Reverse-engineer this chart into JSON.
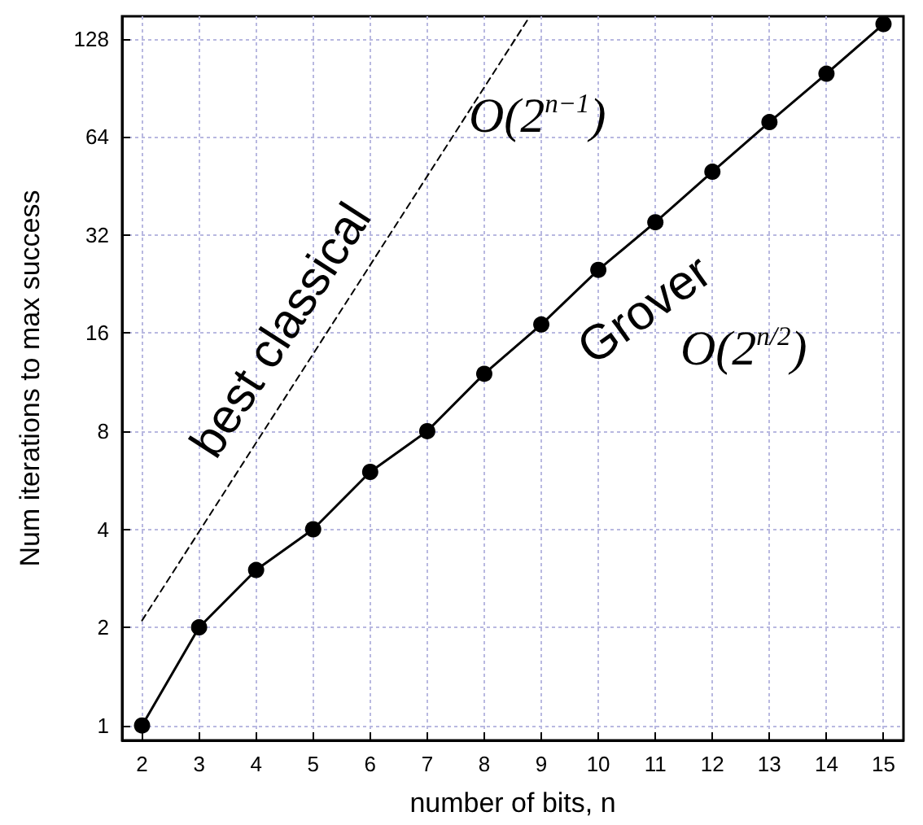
{
  "chart_data": {
    "type": "line",
    "xlabel": "number of bits, n",
    "ylabel": "Num iterations to max success",
    "series": [
      {
        "color": "#000000",
        "x": [
          2,
          3,
          4,
          5,
          6,
          7,
          8,
          9,
          10,
          11,
          12,
          13,
          14,
          15
        ],
        "values": [
          1,
          2,
          3,
          4,
          6,
          8,
          12,
          17,
          25,
          35,
          50,
          71,
          100,
          142
        ],
        "marker": "circle",
        "line_style": "solid"
      },
      {
        "color": "#000000",
        "x": [
          2,
          8.8
        ],
        "values": [
          2.1,
          150
        ],
        "marker": "none",
        "line_style": "dashed"
      }
    ],
    "xlim": [
      1.65,
      15.35
    ],
    "xticks": [
      2,
      3,
      4,
      5,
      6,
      7,
      8,
      9,
      10,
      11,
      12,
      13,
      14,
      15
    ],
    "ylim": [
      0.9,
      150
    ],
    "yticks": [
      1,
      2,
      4,
      8,
      16,
      32,
      64,
      128
    ],
    "log": "y",
    "grid": true,
    "annotations": [
      "best classical",
      "O(2$^{n−1}$)",
      "Grover",
      "O(2$^{n/2}$)"
    ]
  }
}
